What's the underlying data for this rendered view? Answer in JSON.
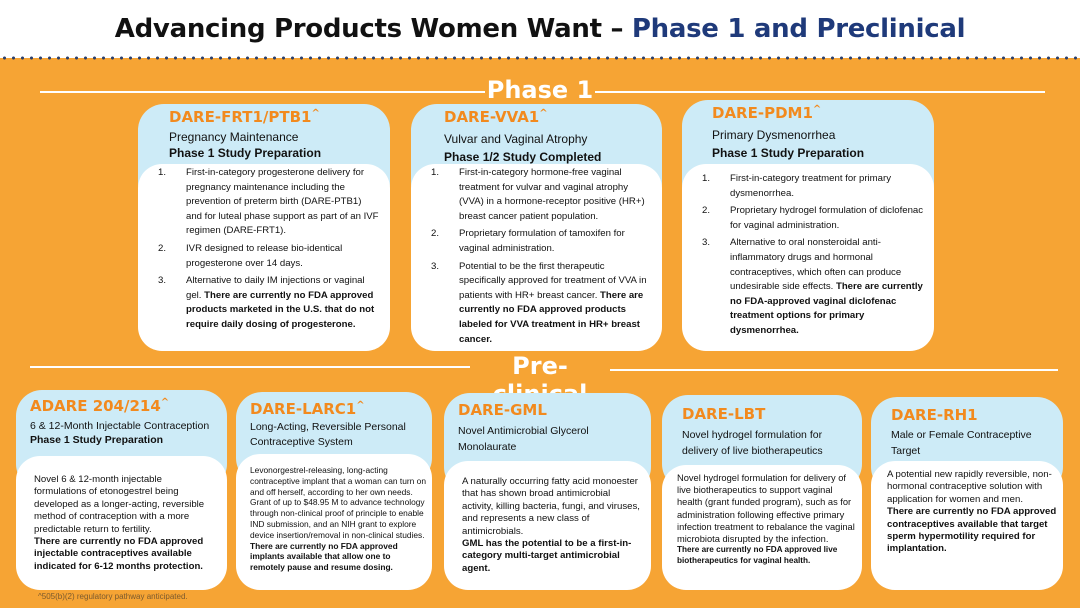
{
  "title": {
    "main": "Advancing Products Women Want – ",
    "accent": "Phase 1 and Preclinical"
  },
  "sections": {
    "phase1": "Phase 1",
    "preclinical": "Pre-clinical"
  },
  "phase1_cards": [
    {
      "name": "DARE-FRT1/PTB1",
      "sup": "^",
      "subtitle": "Pregnancy Maintenance",
      "status": "Phase 1 Study Preparation",
      "items": [
        {
          "num": "1.",
          "text": "First-in-category progesterone delivery for pregnancy maintenance including the prevention of preterm birth (DARE-PTB1) and for luteal phase support as part of an IVF regimen (DARE-FRT1).",
          "bold": ""
        },
        {
          "num": "2.",
          "text": "IVR designed to release bio-identical progesterone over 14 days.",
          "bold": ""
        },
        {
          "num": "3.",
          "text": "Alternative to daily IM injections or vaginal gel. ",
          "bold": "There are currently no FDA approved products marketed in the U.S. that do not require daily dosing of progesterone."
        }
      ]
    },
    {
      "name": "DARE-VVA1",
      "sup": "^",
      "subtitle": "Vulvar and Vaginal Atrophy",
      "status": "Phase 1/2 Study Completed",
      "items": [
        {
          "num": "1.",
          "text": "First-in-category hormone-free vaginal treatment for vulvar and vaginal atrophy (VVA) in a hormone-receptor positive (HR+) breast cancer patient population.",
          "bold": ""
        },
        {
          "num": "2.",
          "text": "Proprietary formulation of tamoxifen for vaginal administration.",
          "bold": ""
        },
        {
          "num": "3.",
          "text": "Potential to be the first therapeutic specifically approved for treatment of VVA in patients with HR+ breast cancer. ",
          "bold": "There are currently no FDA approved products labeled for VVA treatment in HR+ breast cancer."
        }
      ]
    },
    {
      "name": "DARE-PDM1",
      "sup": "^",
      "subtitle": "Primary Dysmenorrhea",
      "status": "Phase 1 Study Preparation",
      "items": [
        {
          "num": "1.",
          "text": "First-in-category treatment for primary dysmenorrhea.",
          "bold": ""
        },
        {
          "num": "2.",
          "text": "Proprietary hydrogel formulation of diclofenac for vaginal administration.",
          "bold": ""
        },
        {
          "num": "3.",
          "text": "Alternative to oral nonsteroidal anti-inflammatory drugs and hormonal contraceptives, which often can produce undesirable side effects. ",
          "bold": "There are currently no FDA-approved vaginal diclofenac treatment options for primary dysmenorrhea."
        }
      ]
    }
  ],
  "preclinical_cards": [
    {
      "name": "ADARE 204/214",
      "sup": "^",
      "subtitle": "6 & 12-Month Injectable Contraception",
      "status": "Phase 1 Study Preparation",
      "text": "Novel 6 & 12-month injectable formulations of etonogestrel being developed as a longer-acting, reversible method of contraception with a more predictable return to fertility.",
      "bold": "There are currently no FDA approved injectable contraceptives available indicated for 6-12 months protection."
    },
    {
      "name": "DARE-LARC1",
      "sup": "^",
      "subtitle": "Long-Acting, Reversible Personal Contraceptive System",
      "status": "",
      "text": "Levonorgestrel-releasing, long-acting contraceptive implant that a woman can turn on and off herself, according to her own needs. Grant of up to $48.95 M to advance technology through non-clinical proof of principle to enable IND submission, and an NIH grant to explore device insertion/removal in non-clinical studies.",
      "bold": "There are currently no FDA approved implants available that allow one to remotely pause and resume dosing."
    },
    {
      "name": "DARE-GML",
      "sup": "",
      "subtitle": "Novel Antimicrobial Glycerol Monolaurate",
      "status": "",
      "text": "A naturally occurring fatty acid monoester that has shown broad antimicrobial activity, killing bacteria, fungi, and viruses, and represents a new class of antimicrobials.",
      "bold": "GML has the potential to be a first-in-category multi-target antimicrobial agent."
    },
    {
      "name": "DARE-LBT",
      "sup": "",
      "subtitle": "Novel hydrogel formulation for delivery of  live biotherapeutics",
      "status": "",
      "text": "Novel hydrogel formulation for delivery of live biotherapeutics to support vaginal health (grant funded program), such as for administration following effective primary infection treatment to rebalance the vaginal microbiota disrupted by the infection.",
      "bold": "There are currently no FDA approved live biotherapeutics for vaginal health."
    },
    {
      "name": "DARE-RH1",
      "sup": "",
      "subtitle": "Male or Female Contraceptive Target",
      "status": "",
      "text": "A potential new rapidly reversible, non-hormonal contraceptive solution with application for women and men.",
      "bold": "There are currently no FDA approved contraceptives available that target sperm hypermotility required for implantation."
    }
  ],
  "footnote": "^505(b)(2) regulatory pathway anticipated."
}
